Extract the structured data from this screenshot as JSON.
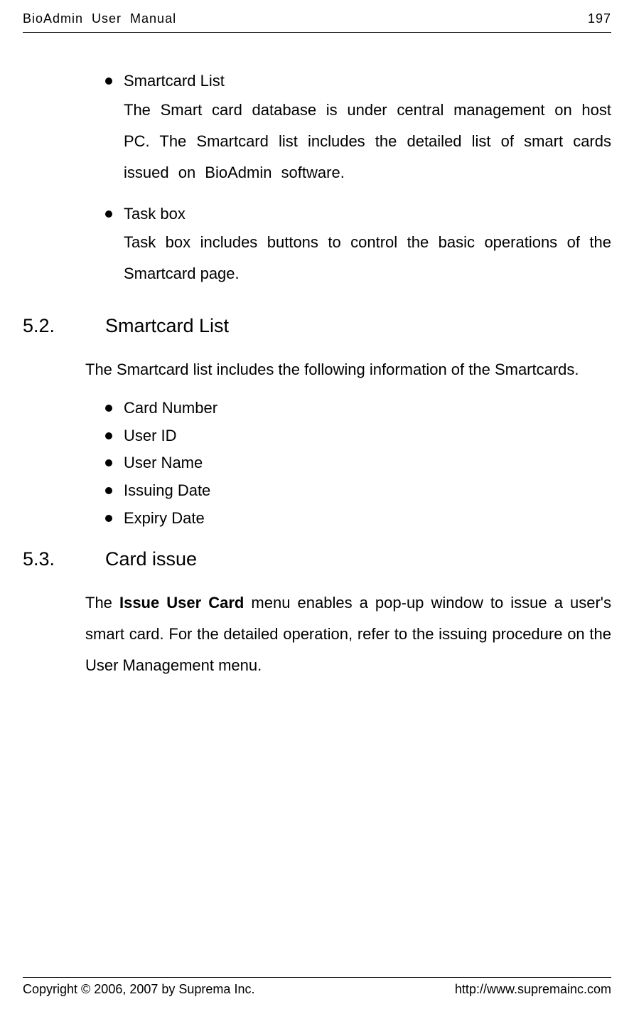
{
  "header": {
    "title": "BioAdmin User Manual",
    "page_number": "197"
  },
  "bullets_top": [
    {
      "head": "Smartcard List",
      "body": "The Smart card database is under central management on host PC. The Smartcard list includes the detailed list of smart cards issued on BioAdmin software.",
      "justify_wide": true
    },
    {
      "head": "Task box",
      "body": "Task box includes buttons to control the basic operations of the Smartcard page.",
      "justify_wide": false
    }
  ],
  "section52": {
    "num": "5.2.",
    "title": "Smartcard List",
    "para": "The Smartcard list includes the following information of the Smartcards.",
    "items": [
      "Card Number",
      "User ID",
      "User Name",
      "Issuing Date",
      "Expiry Date"
    ]
  },
  "section53": {
    "num": "5.3.",
    "title": "Card issue",
    "para_pre": "The ",
    "para_bold": "Issue User Card",
    "para_post": " menu enables a pop-up window to issue a user's smart card. For the detailed operation, refer to the issuing procedure on the User Management menu."
  },
  "footer": {
    "copyright": "Copyright © 2006, 2007 by Suprema Inc.",
    "url": "http://www.supremainc.com"
  }
}
